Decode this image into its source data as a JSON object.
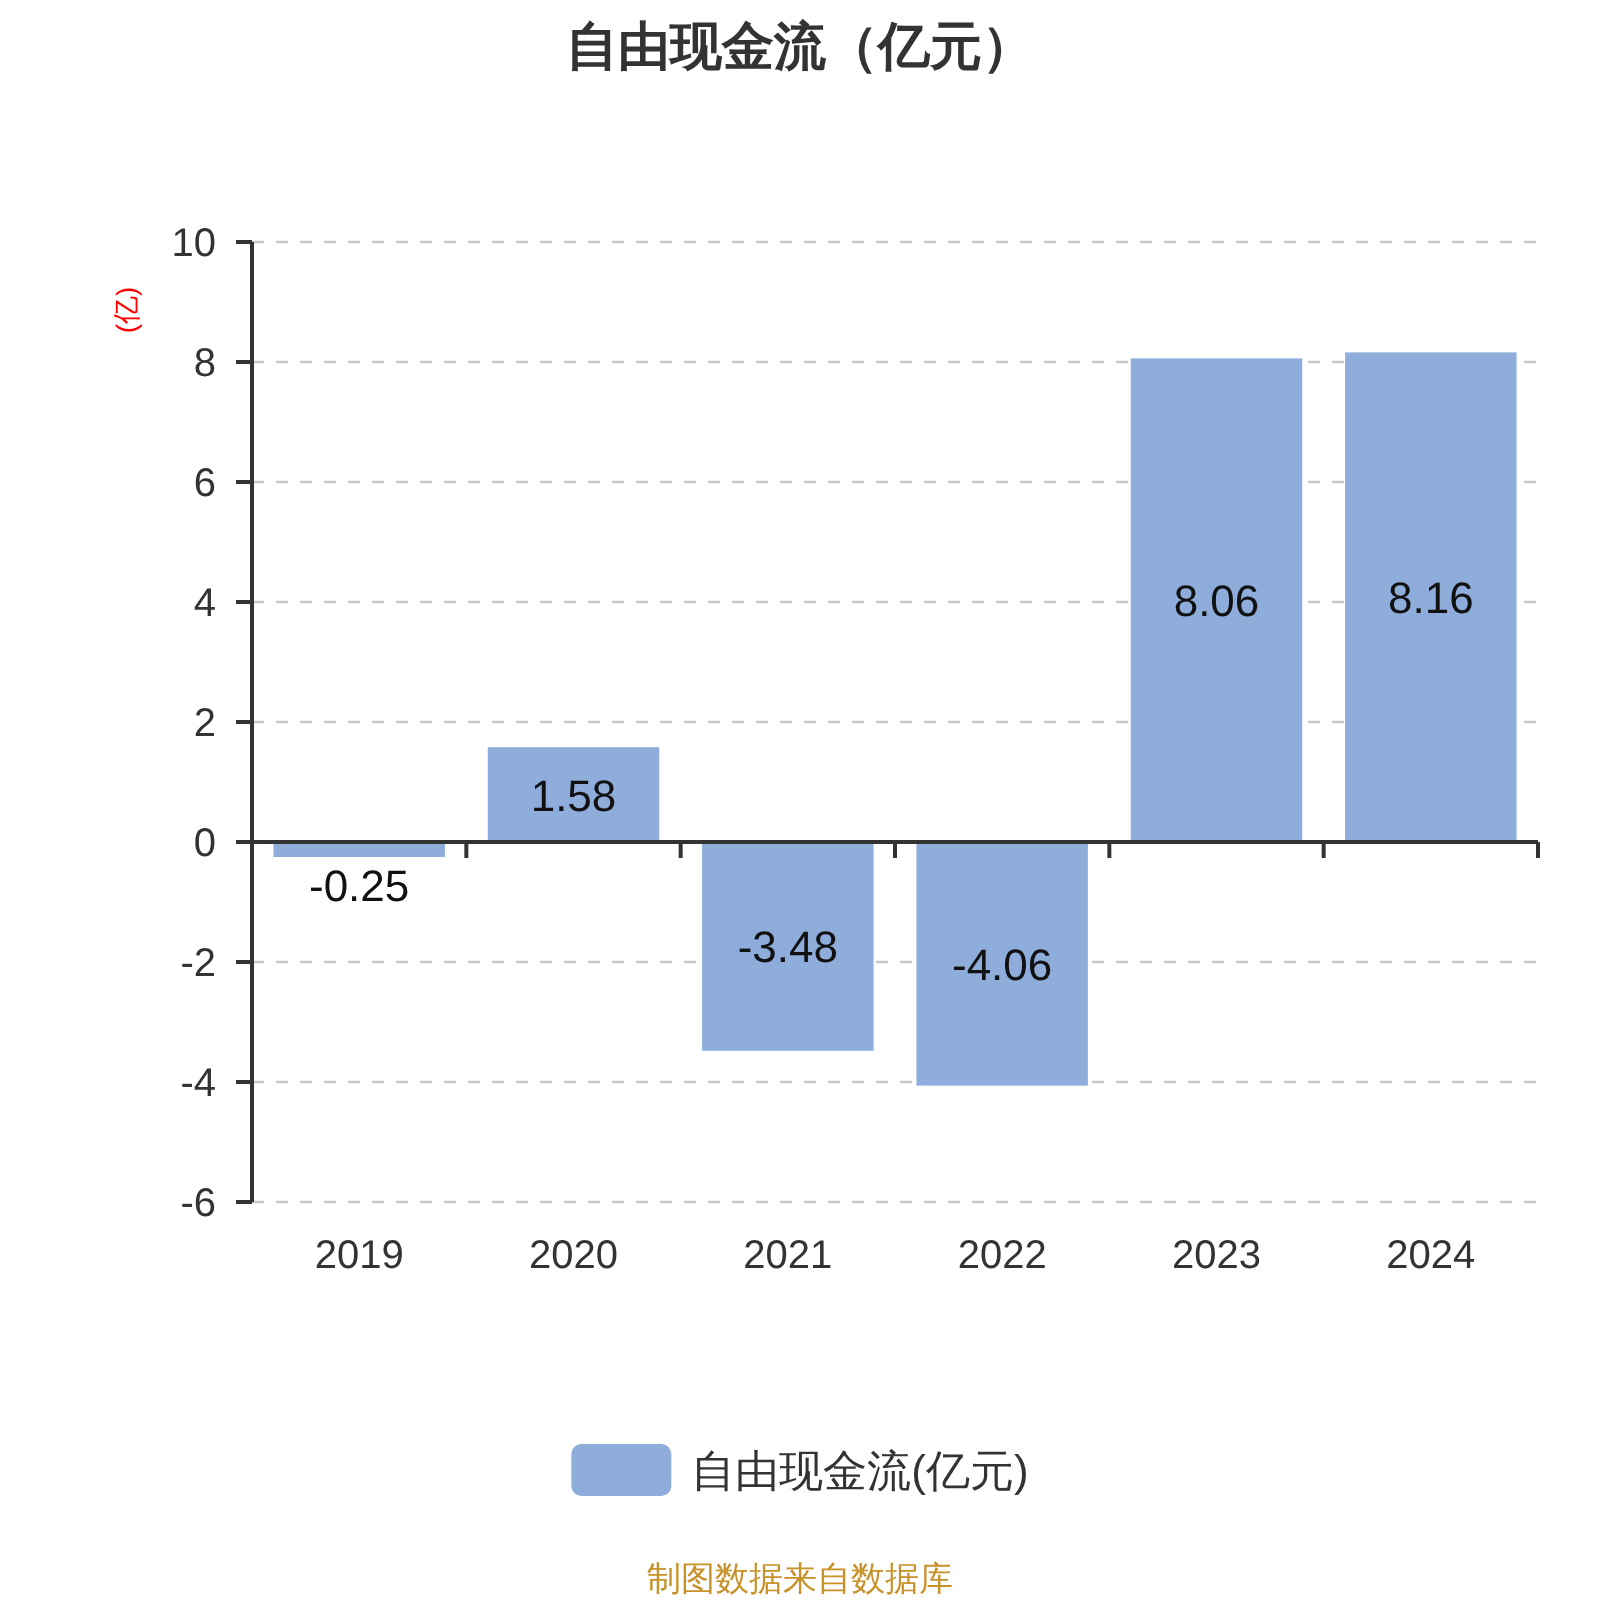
{
  "chart_data": {
    "type": "bar",
    "title": "自由现金流（亿元）",
    "ylabel": "(亿)",
    "categories": [
      "2019",
      "2020",
      "2021",
      "2022",
      "2023",
      "2024"
    ],
    "series": [
      {
        "name": "自由现金流(亿元)",
        "color": "#8eaddb",
        "values": [
          -0.25,
          1.58,
          -3.48,
          -4.06,
          8.06,
          8.16
        ]
      }
    ],
    "ylim": [
      -6,
      10
    ],
    "yticks": [
      -6,
      -4,
      -2,
      0,
      2,
      4,
      6,
      8,
      10
    ],
    "grid": "y",
    "legend": "bottom",
    "data_labels": true,
    "annotations": [
      "制图数据来自数据库"
    ]
  }
}
